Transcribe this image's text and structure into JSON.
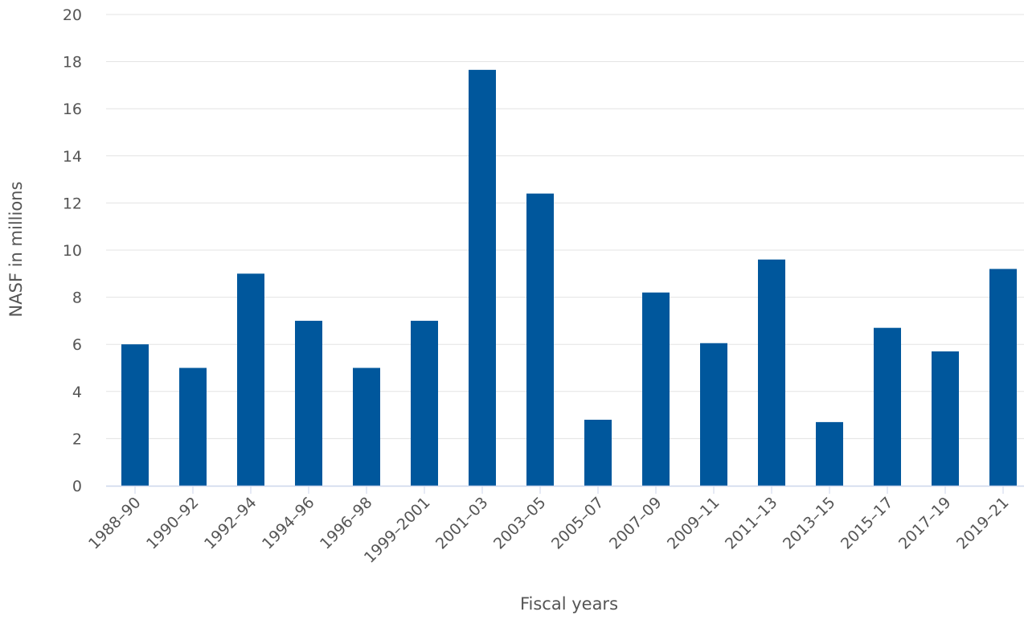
{
  "chart_data": {
    "type": "bar",
    "xlabel": "Fiscal years",
    "ylabel": "NASF in millions",
    "ylim": [
      0,
      20
    ],
    "yticks": [
      "0",
      "2",
      "4",
      "6",
      "8",
      "10",
      "12",
      "14",
      "16",
      "18",
      "20"
    ],
    "grid": true,
    "bar_color": "#00579c",
    "categories": [
      "1988–90",
      "1990–92",
      "1992–94",
      "1994–96",
      "1996–98",
      "1999–2001",
      "2001–03",
      "2003–05",
      "2005–07",
      "2007–09",
      "2009–11",
      "2011–13",
      "2013–15",
      "2015–17",
      "2017–19",
      "2019–21"
    ],
    "values": [
      6.0,
      5.0,
      9.0,
      7.0,
      5.0,
      7.0,
      17.65,
      12.4,
      2.8,
      8.2,
      6.05,
      9.6,
      2.7,
      6.7,
      5.7,
      9.2
    ]
  }
}
